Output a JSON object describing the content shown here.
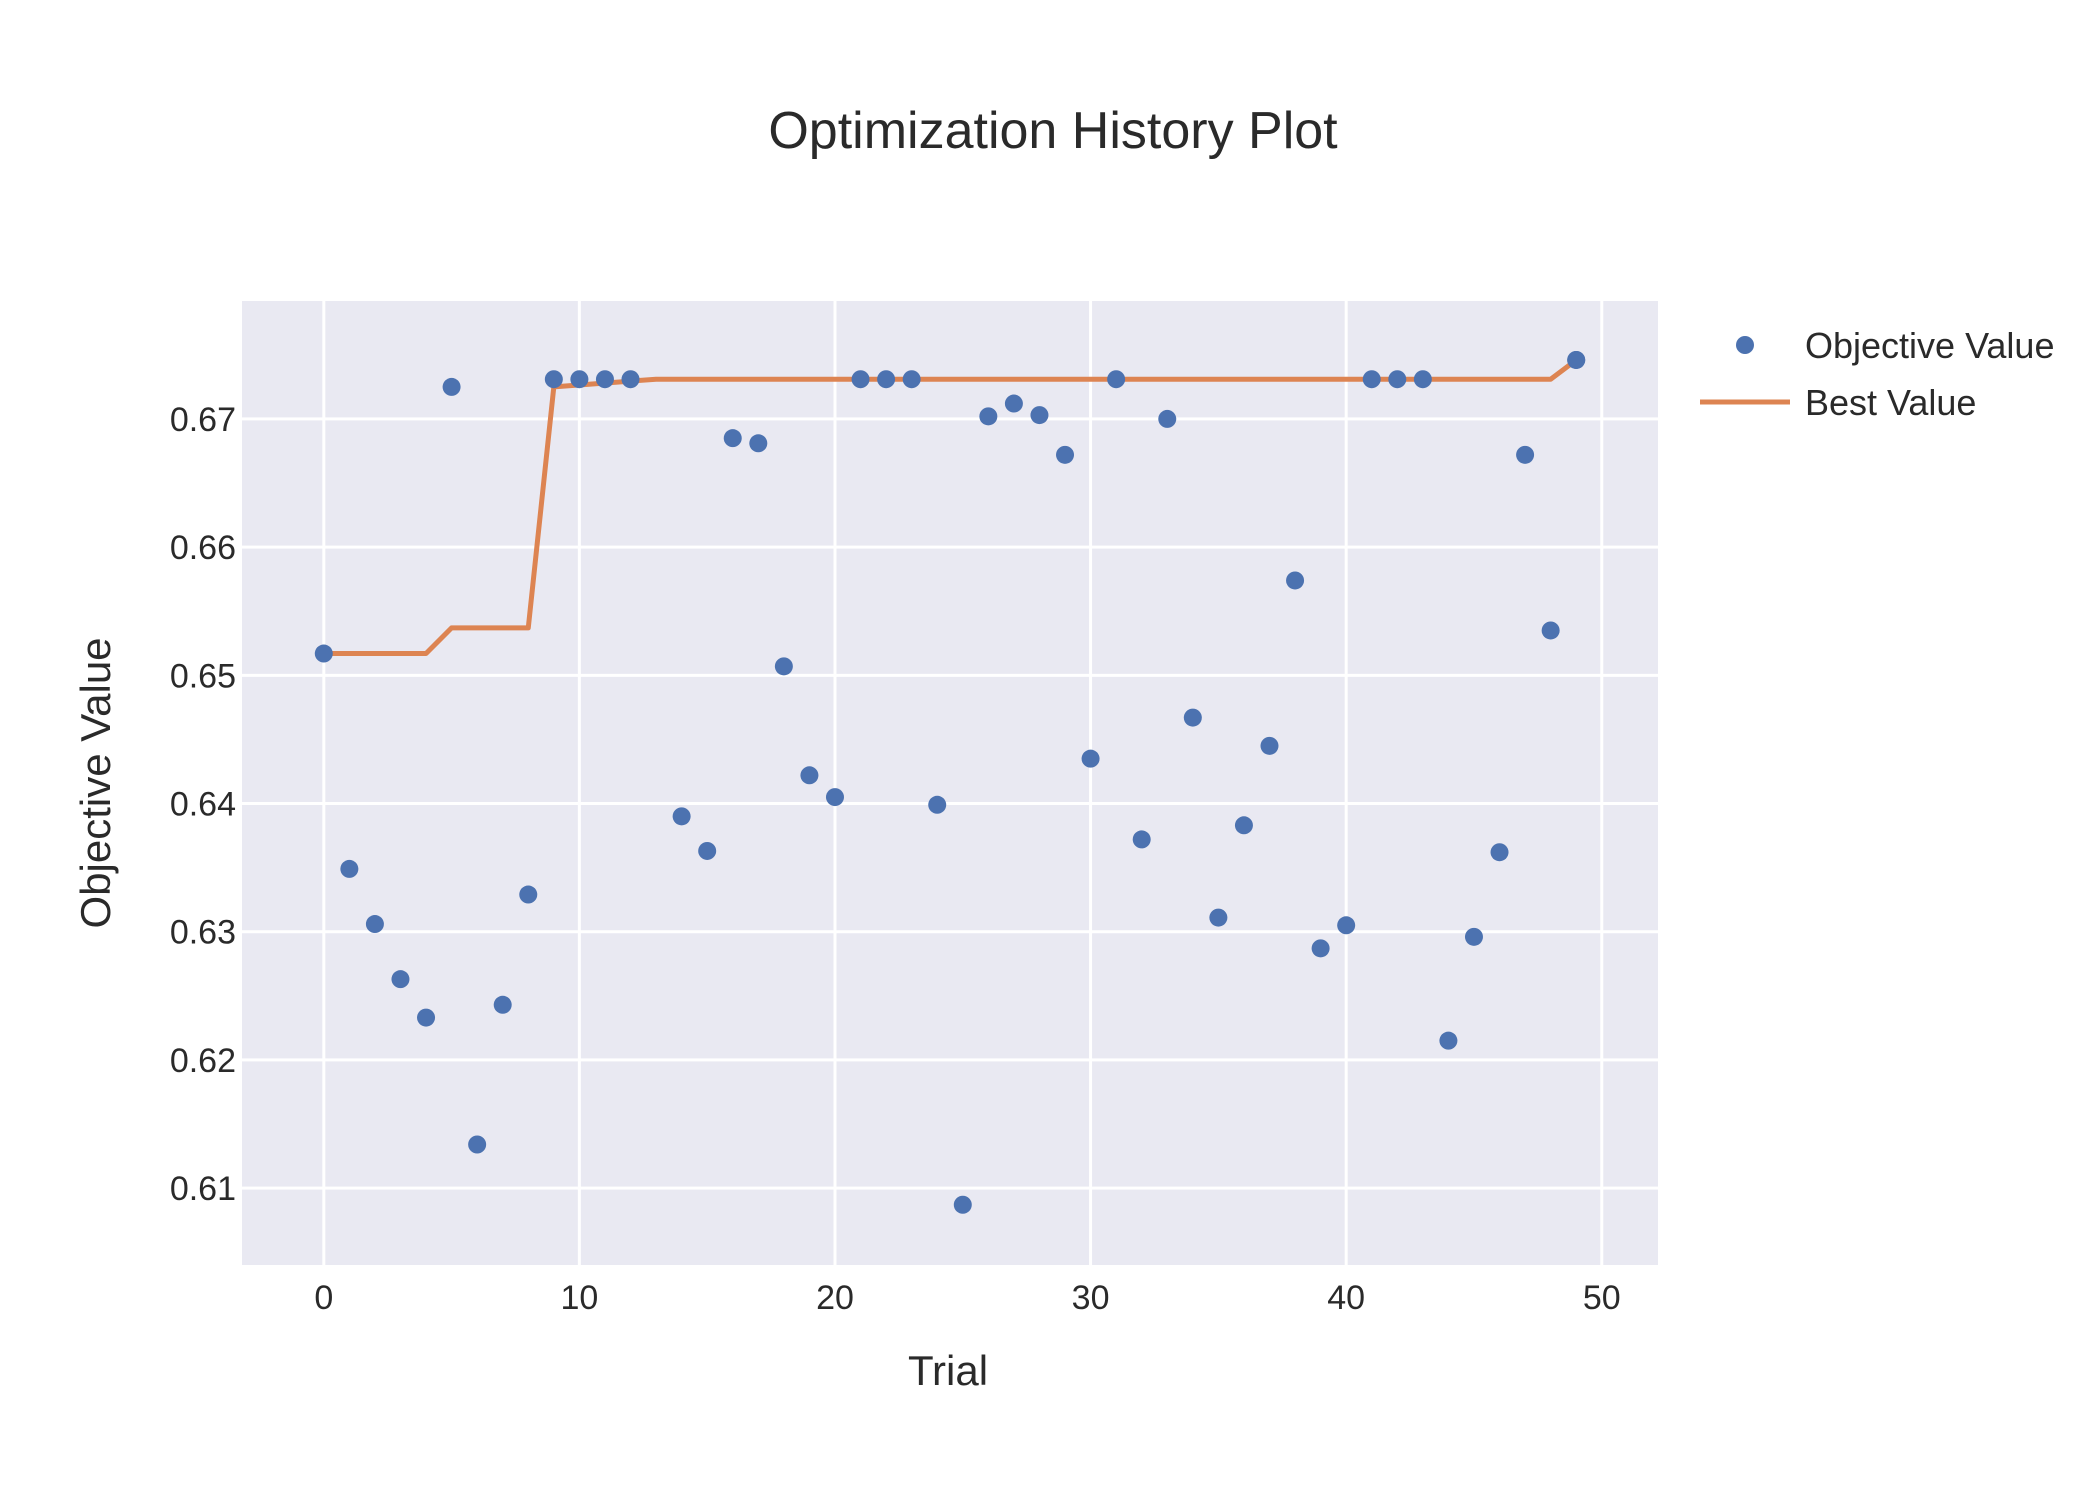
{
  "colors": {
    "plot_bg": "#e9e9f2",
    "grid": "#ffffff",
    "objective": "#4c72b0",
    "best": "#dd8452"
  },
  "chart_data": {
    "type": "scatter",
    "title": "Optimization History Plot",
    "xlabel": "Trial",
    "ylabel": "Objective Value",
    "xlim": [
      -3.2,
      52.2
    ],
    "ylim": [
      0.604,
      0.6792
    ],
    "xticks": [
      0,
      10,
      20,
      30,
      40,
      50
    ],
    "yticks": [
      0.61,
      0.62,
      0.63,
      0.64,
      0.65,
      0.66,
      0.67
    ],
    "ytick_labels": [
      "0.61",
      "0.62",
      "0.63",
      "0.64",
      "0.65",
      "0.66",
      "0.67"
    ],
    "grid": true,
    "legend_position": "top-right",
    "x": [
      0,
      1,
      2,
      3,
      4,
      5,
      6,
      7,
      8,
      9,
      10,
      11,
      12,
      13,
      14,
      15,
      16,
      17,
      18,
      19,
      20,
      21,
      22,
      23,
      24,
      25,
      26,
      27,
      28,
      29,
      30,
      31,
      32,
      33,
      34,
      35,
      36,
      37,
      38,
      39,
      40,
      41,
      42,
      43,
      44,
      45,
      46,
      47,
      48,
      49
    ],
    "series": [
      {
        "name": "Objective Value",
        "kind": "markers",
        "values": [
          0.6517,
          0.6349,
          0.6306,
          0.6263,
          0.6233,
          0.6134,
          0.6243,
          0.6329,
          0.6725,
          0.6731,
          0.6731,
          0.6731,
          0.6731,
          0.639,
          0.6363,
          0.6685,
          0.6681,
          0.6507,
          0.6422,
          0.6405,
          0.6731,
          0.6731,
          0.6731,
          0.6399,
          0.6087,
          0.6702,
          0.6712,
          0.6703,
          0.6672,
          0.6435,
          0.6731,
          0.6372,
          0.67,
          0.6467,
          0.6311,
          0.6383,
          0.6445,
          0.6574,
          0.6287,
          0.6305,
          0.6731,
          0.6731,
          0.6731,
          0.6215,
          0.6296,
          0.6362,
          0.6672,
          0.6535,
          0.6746,
          0.6746
        ],
        "x": [
          0,
          1,
          2,
          3,
          4,
          6,
          7,
          8,
          5,
          9,
          10,
          11,
          12,
          14,
          15,
          16,
          17,
          18,
          19,
          20,
          21,
          22,
          23,
          24,
          25,
          26,
          27,
          28,
          29,
          30,
          31,
          32,
          33,
          34,
          35,
          36,
          37,
          38,
          39,
          40,
          41,
          42,
          43,
          44,
          45,
          46,
          47,
          48,
          49,
          49
        ]
      },
      {
        "name": "Best Value",
        "kind": "line",
        "x": [
          0,
          4,
          5,
          8,
          9,
          13,
          48,
          49
        ],
        "values": [
          0.6517,
          0.6517,
          0.6537,
          0.6537,
          0.6725,
          0.6731,
          0.6731,
          0.6746
        ]
      }
    ]
  }
}
